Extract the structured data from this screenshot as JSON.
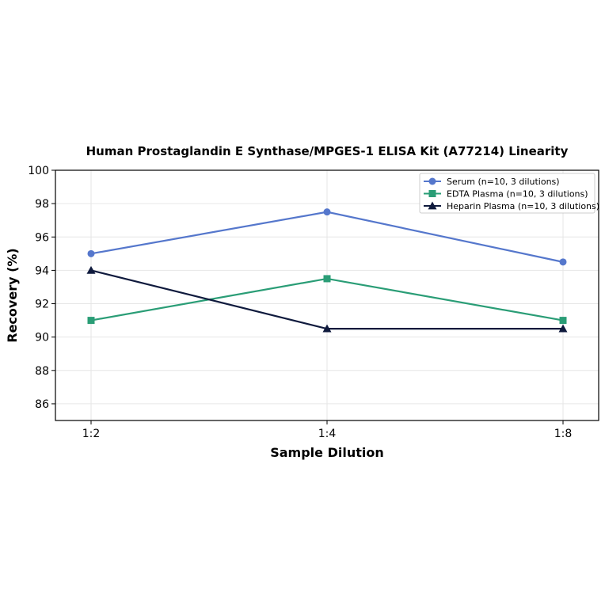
{
  "chart_data": {
    "type": "line",
    "title": "Human Prostaglandin E Synthase/MPGES-1 ELISA Kit (A77214) Linearity",
    "xlabel": "Sample Dilution",
    "ylabel": "Recovery (%)",
    "categories": [
      "1:2",
      "1:4",
      "1:8"
    ],
    "ylim": [
      85,
      100
    ],
    "yticks": [
      86,
      88,
      90,
      92,
      94,
      96,
      98,
      100
    ],
    "grid": true,
    "legend_position": "top-right",
    "series": [
      {
        "name": "Serum (n=10, 3 dilutions)",
        "values": [
          95.0,
          97.5,
          94.5
        ],
        "color": "#5577cc",
        "marker": "circle"
      },
      {
        "name": "EDTA Plasma (n=10, 3 dilutions)",
        "values": [
          91.0,
          93.5,
          91.0
        ],
        "color": "#2a9d76",
        "marker": "square"
      },
      {
        "name": "Heparin Plasma (n=10, 3 dilutions)",
        "values": [
          94.0,
          90.5,
          90.5
        ],
        "color": "#0f1a3d",
        "marker": "triangle"
      }
    ]
  }
}
